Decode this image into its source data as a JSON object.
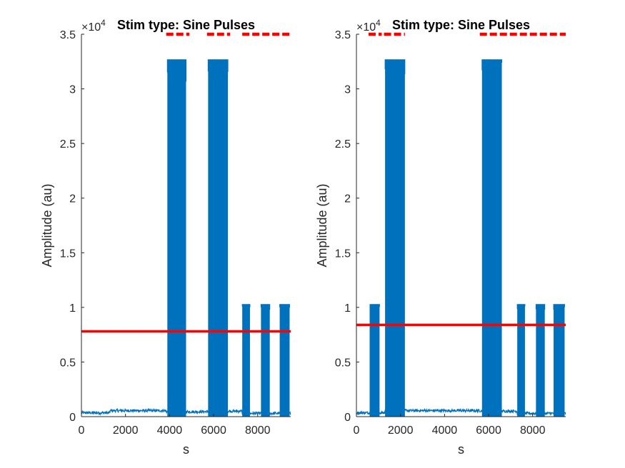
{
  "colors": {
    "signal": "#0072BD",
    "threshold": "#FF0000",
    "stim_marker": "#FF0000",
    "axis": "#262626"
  },
  "chart_data": [
    {
      "type": "line",
      "title": "Stim type: Sine Pulses",
      "xlabel": "s",
      "ylabel": "Amplitude (au)",
      "y_exponent": "×10",
      "y_exponent_power": "4",
      "xlim": [
        0,
        9500
      ],
      "ylim": [
        0,
        35000
      ],
      "xticks": [
        0,
        2000,
        4000,
        6000,
        8000
      ],
      "xtick_labels": [
        "0",
        "2000",
        "4000",
        "6000",
        "8000"
      ],
      "yticks": [
        0,
        5000,
        10000,
        15000,
        20000,
        25000,
        30000,
        35000
      ],
      "ytick_labels": [
        "0",
        "0.5",
        "1",
        "1.5",
        "2",
        "2.5",
        "3",
        "3.5"
      ],
      "baseline": 400,
      "threshold": 7800,
      "segments": [
        {
          "start": 0,
          "end": 1300,
          "level": 350
        },
        {
          "start": 1300,
          "end": 3850,
          "level": 550
        },
        {
          "start": 3850,
          "end": 5750,
          "level": 450
        },
        {
          "start": 5750,
          "end": 7300,
          "level": 500
        },
        {
          "start": 7300,
          "end": 9500,
          "level": 300
        }
      ],
      "bursts": [
        {
          "start": 3900,
          "end": 4750,
          "amplitude": 32700
        },
        {
          "start": 5750,
          "end": 6650,
          "amplitude": 32700
        },
        {
          "start": 7300,
          "end": 7650,
          "amplitude": 10300
        },
        {
          "start": 8150,
          "end": 8550,
          "amplitude": 10300
        },
        {
          "start": 9000,
          "end": 9450,
          "amplitude": 10300
        }
      ],
      "stim_markers": {
        "level": 35000,
        "intervals": [
          {
            "start": 3850,
            "end": 4900
          },
          {
            "start": 5700,
            "end": 6750
          },
          {
            "start": 7300,
            "end": 9500
          }
        ]
      }
    },
    {
      "type": "line",
      "title": "Stim type: Sine Pulses",
      "xlabel": "s",
      "ylabel": "Amplitude (au)",
      "y_exponent": "×10",
      "y_exponent_power": "4",
      "xlim": [
        0,
        9500
      ],
      "ylim": [
        0,
        35000
      ],
      "xticks": [
        0,
        2000,
        4000,
        6000,
        8000
      ],
      "xtick_labels": [
        "0",
        "2000",
        "4000",
        "6000",
        "8000"
      ],
      "yticks": [
        0,
        5000,
        10000,
        15000,
        20000,
        25000,
        30000,
        35000
      ],
      "ytick_labels": [
        "0",
        "0.5",
        "1",
        "1.5",
        "2",
        "2.5",
        "3",
        "3.5"
      ],
      "baseline": 400,
      "threshold": 8400,
      "segments": [
        {
          "start": 0,
          "end": 1300,
          "level": 350
        },
        {
          "start": 1300,
          "end": 5700,
          "level": 550
        },
        {
          "start": 5700,
          "end": 7300,
          "level": 500
        },
        {
          "start": 7300,
          "end": 9500,
          "level": 300
        }
      ],
      "bursts": [
        {
          "start": 600,
          "end": 1050,
          "amplitude": 10300
        },
        {
          "start": 1300,
          "end": 2200,
          "amplitude": 32700
        },
        {
          "start": 5700,
          "end": 6600,
          "amplitude": 32700
        },
        {
          "start": 7300,
          "end": 7650,
          "amplitude": 10300
        },
        {
          "start": 8150,
          "end": 8550,
          "amplitude": 10300
        },
        {
          "start": 8950,
          "end": 9450,
          "amplitude": 10300
        }
      ],
      "stim_markers": {
        "level": 35000,
        "intervals": [
          {
            "start": 550,
            "end": 1150
          },
          {
            "start": 1250,
            "end": 2200
          },
          {
            "start": 5600,
            "end": 9500
          }
        ]
      }
    }
  ]
}
